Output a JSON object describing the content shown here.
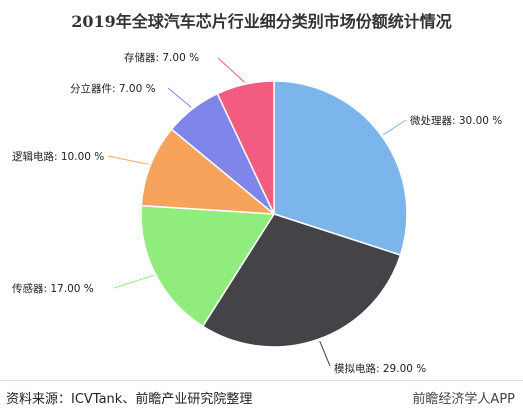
{
  "chart_data": {
    "type": "pie",
    "title": "2019年全球汽车芯片行业细分类别市场份额统计情况",
    "slices": [
      {
        "label": "微处理器",
        "display": "微处理器: 30.00 %",
        "value": 30,
        "color": "#7cb5ec"
      },
      {
        "label": "模拟电路",
        "display": "模拟电路: 29.00 %",
        "value": 29,
        "color": "#434348"
      },
      {
        "label": "传感器",
        "display": "传感器: 17.00 %",
        "value": 17,
        "color": "#90ed7d"
      },
      {
        "label": "逻辑电路",
        "display": "逻辑电路: 10.00 %",
        "value": 10,
        "color": "#f7a35c"
      },
      {
        "label": "分立器件",
        "display": "分立器件: 7.00 %",
        "value": 7,
        "color": "#8085e9"
      },
      {
        "label": "存储器",
        "display": "存储器: 7.00 %",
        "value": 7,
        "color": "#f15c80"
      }
    ]
  },
  "footer": {
    "source": "资料来源：ICVTank、前瞻产业研究院整理",
    "brand": "前瞻经济学人APP"
  }
}
